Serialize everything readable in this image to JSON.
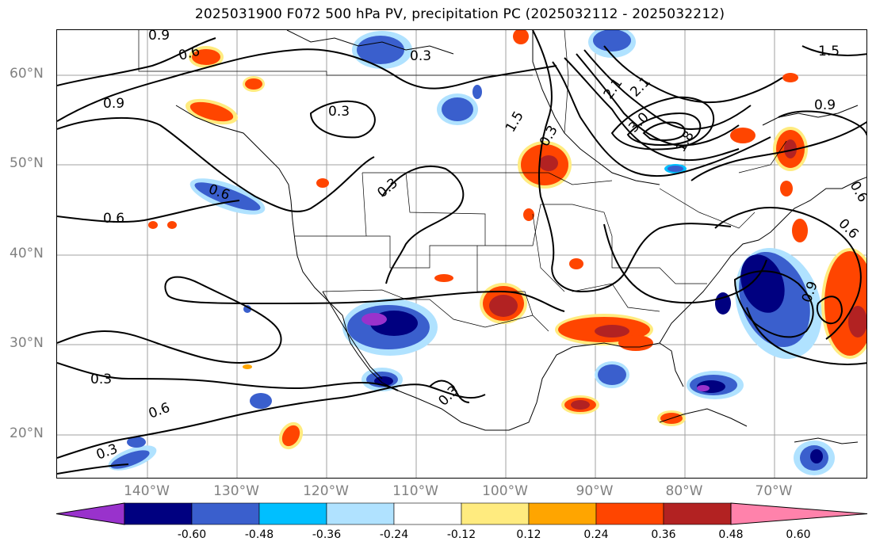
{
  "title": "2025031900 F072 500 hPa PV, precipitation PC (2025032112 - 2025032212)",
  "lat_labels": [
    "60°N",
    "50°N",
    "40°N",
    "30°N",
    "20°N"
  ],
  "lon_labels": [
    "140°W",
    "130°W",
    "120°W",
    "110°W",
    "100°W",
    "90°W",
    "80°W",
    "70°W"
  ],
  "pv_contour_labels": [
    "0.9",
    "0.6",
    "0.3",
    "0.9",
    "0.3",
    "0.6",
    "0.6",
    "0.3",
    "0.3",
    "0.6",
    "0.3",
    "0.3",
    "1.5",
    "2.1",
    "2.1",
    "3.0",
    "1.8",
    "0.9",
    "0.6",
    "0.9",
    "0.6",
    "1.5",
    "0.3"
  ],
  "colorbar": {
    "colors": [
      "#9932cc",
      "#000080",
      "#3a5fcd",
      "#00bfff",
      "#b0e2ff",
      "#ffffff",
      "#ffeb7f",
      "#ffa500",
      "#ff4500",
      "#b22222",
      "#ff82ab"
    ],
    "ticks": [
      "-0.60",
      "-0.48",
      "-0.36",
      "-0.24",
      "-0.12",
      "0.12",
      "0.24",
      "0.36",
      "0.48",
      "0.60"
    ]
  }
}
